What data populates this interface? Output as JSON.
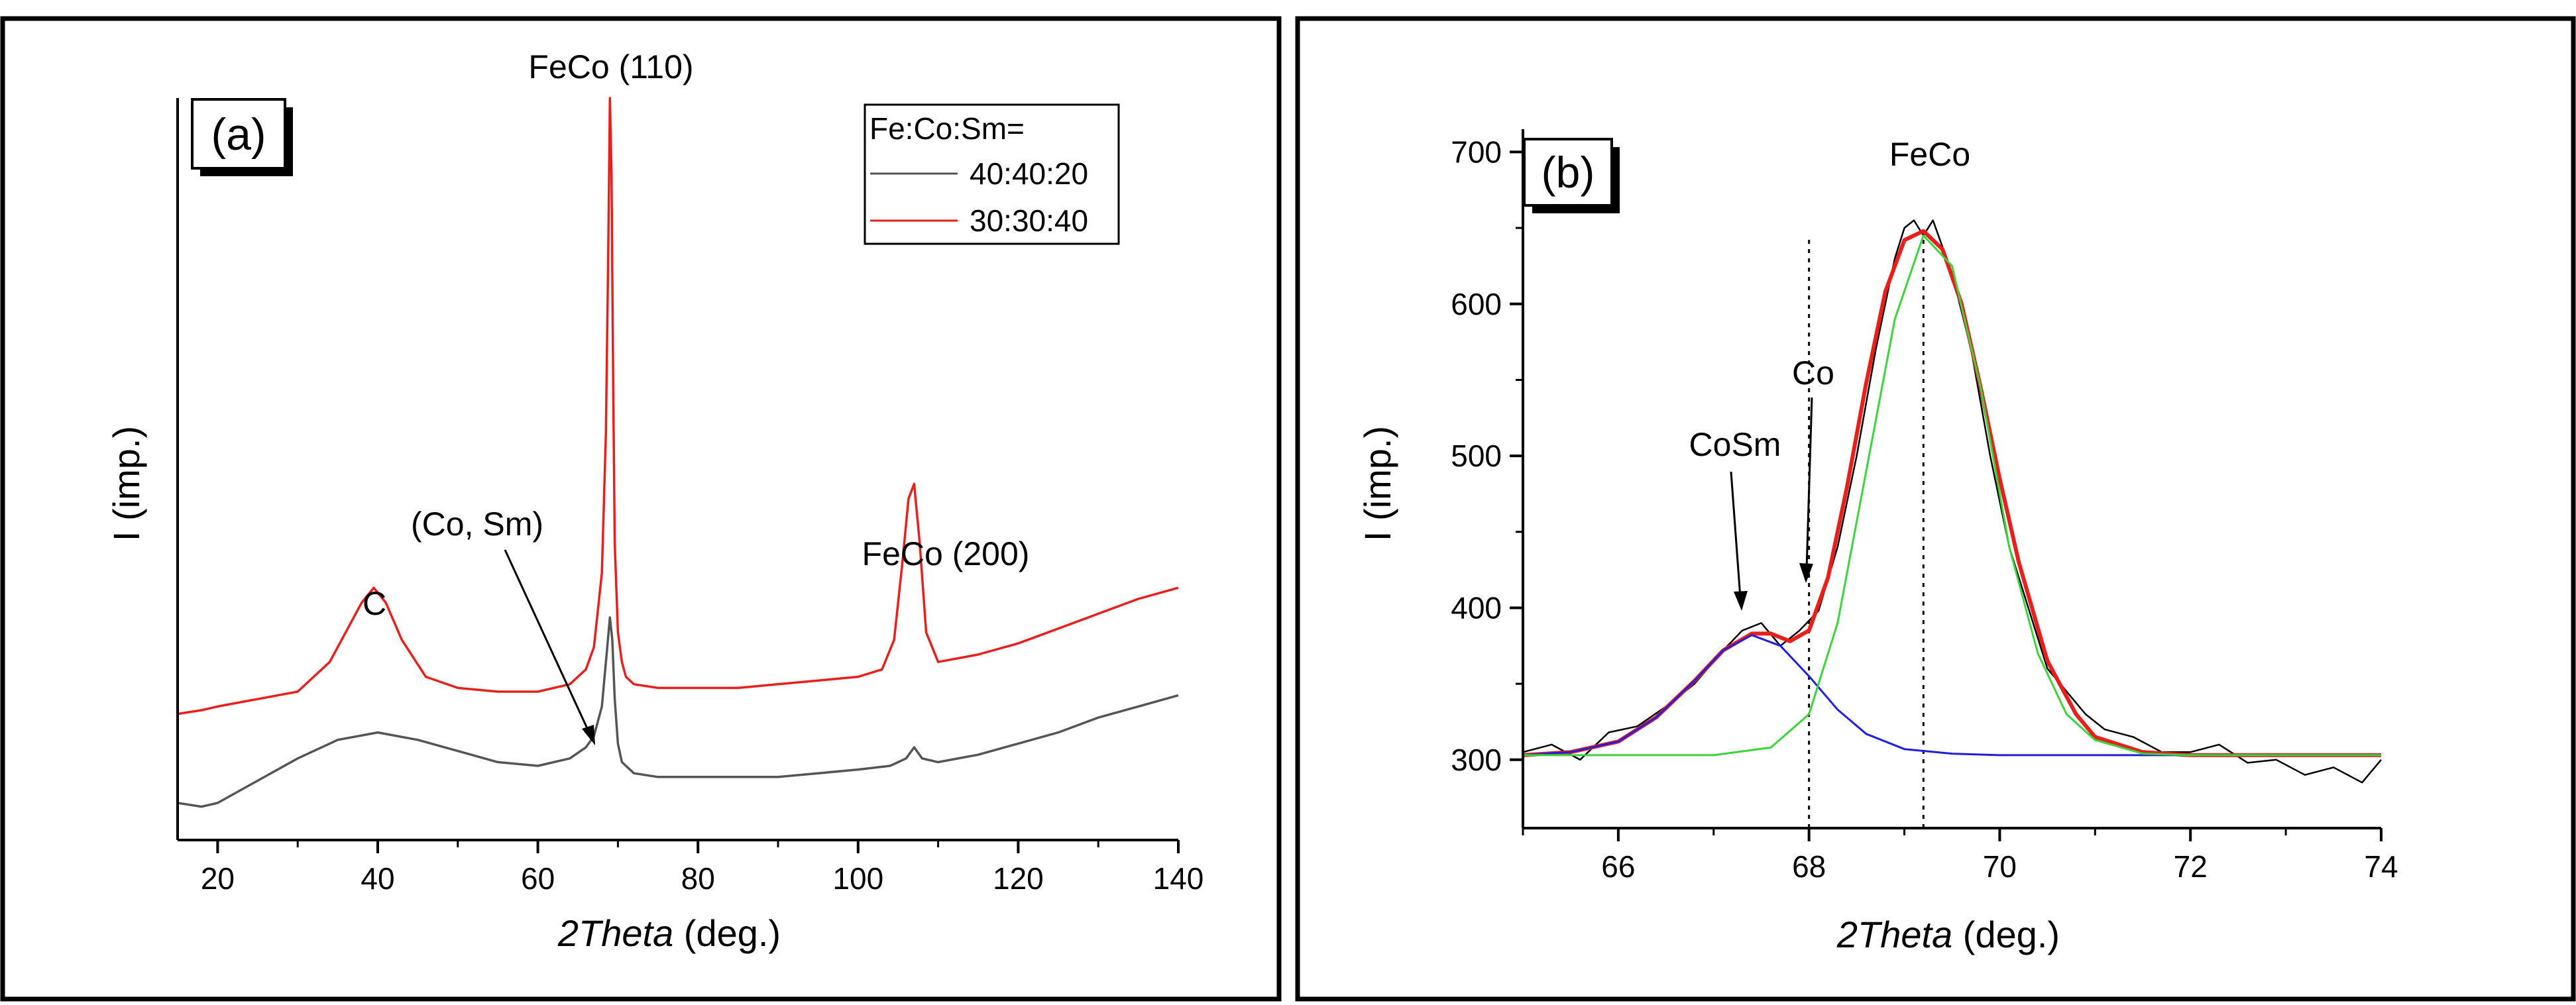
{
  "chart_data": [
    {
      "type": "line",
      "panel_label": "(a)",
      "xlabel_italic": "2Theta",
      "xlabel_rest": " (deg.)",
      "ylabel": "I (imp.)",
      "xlim": [
        15,
        140
      ],
      "ylim": [
        0,
        100
      ],
      "xticks": [
        20,
        40,
        60,
        80,
        100,
        120,
        140
      ],
      "yticks_shown": false,
      "legend": {
        "title": "Fe:Co:Sm=",
        "placement": "top-right",
        "entries": [
          {
            "label": "40:40:20",
            "color": "#555555"
          },
          {
            "label": "30:30:40",
            "color": "#e8201c"
          }
        ]
      },
      "series": [
        {
          "name": "40:40:20",
          "color": "#555555",
          "x": [
            15,
            18,
            20,
            25,
            30,
            35,
            40,
            45,
            50,
            55,
            60,
            64,
            66,
            67,
            68,
            68.5,
            69,
            69.3,
            69.6,
            70,
            70.5,
            72,
            75,
            80,
            85,
            90,
            95,
            100,
            104,
            106,
            107,
            108,
            110,
            115,
            120,
            125,
            130,
            135,
            140
          ],
          "y": [
            5,
            4.5,
            5,
            8,
            11,
            13.5,
            14.5,
            13.5,
            12,
            10.5,
            10,
            11,
            12.5,
            14,
            18,
            24,
            30,
            27,
            19,
            13,
            10.5,
            9,
            8.5,
            8.5,
            8.5,
            8.5,
            9,
            9.5,
            10,
            11,
            12.5,
            11,
            10.5,
            11.5,
            13,
            14.5,
            16.5,
            18,
            19.5
          ]
        },
        {
          "name": "30:30:40",
          "color": "#e8201c",
          "x": [
            15,
            18,
            20,
            25,
            30,
            34,
            36,
            38,
            39.5,
            41,
            43,
            46,
            50,
            55,
            60,
            64,
            66,
            67,
            68,
            68.5,
            68.8,
            69,
            69.2,
            69.4,
            69.6,
            70,
            70.5,
            71,
            72,
            75,
            80,
            85,
            90,
            95,
            100,
            103,
            104.5,
            105.5,
            106.3,
            107,
            107.7,
            108.5,
            110,
            115,
            120,
            125,
            130,
            135,
            140
          ],
          "y": [
            17,
            17.5,
            18,
            19,
            20,
            24,
            28,
            32,
            34,
            32,
            27,
            22,
            20.5,
            20,
            20,
            21,
            23,
            26,
            36,
            55,
            80,
            100,
            90,
            62,
            40,
            28,
            24,
            22,
            21,
            20.5,
            20.5,
            20.5,
            21,
            21.5,
            22,
            23,
            27,
            37,
            46,
            48,
            40,
            28,
            24,
            25,
            26.5,
            28.5,
            30.5,
            32.5,
            34
          ]
        }
      ],
      "annotations": [
        {
          "text": "FeCo (110)",
          "x": 69,
          "y": 100
        },
        {
          "text": "FeCo (200)",
          "x": 107,
          "y": 48
        },
        {
          "text": "C",
          "x": 39.5,
          "y": 34
        },
        {
          "text": "(Co, Sm)",
          "x": 68,
          "y": 26,
          "arrow": true
        }
      ]
    },
    {
      "type": "line",
      "panel_label": "(b)",
      "xlabel_italic": "2Theta",
      "xlabel_rest": " (deg.)",
      "ylabel": "I (imp.)",
      "xlim": [
        65,
        74
      ],
      "ylim": [
        255,
        715
      ],
      "xticks": [
        66,
        68,
        70,
        72,
        74
      ],
      "yticks": [
        300,
        400,
        500,
        600,
        700
      ],
      "series": [
        {
          "role": "measured",
          "color": "#000000",
          "x": [
            65,
            65.3,
            65.6,
            65.9,
            66.2,
            66.5,
            66.8,
            67.1,
            67.3,
            67.5,
            67.7,
            67.9,
            68.1,
            68.3,
            68.5,
            68.7,
            68.9,
            69.0,
            69.1,
            69.2,
            69.3,
            69.5,
            69.7,
            69.9,
            70.1,
            70.3,
            70.5,
            70.7,
            70.9,
            71.1,
            71.4,
            71.7,
            72.0,
            72.3,
            72.6,
            72.9,
            73.2,
            73.5,
            73.8,
            74.0
          ],
          "y": [
            305,
            310,
            300,
            318,
            322,
            335,
            350,
            372,
            385,
            390,
            375,
            385,
            398,
            440,
            500,
            570,
            630,
            650,
            655,
            645,
            655,
            620,
            570,
            500,
            440,
            400,
            360,
            345,
            330,
            320,
            315,
            305,
            305,
            310,
            298,
            300,
            290,
            295,
            285,
            300
          ]
        },
        {
          "role": "fit-total",
          "color": "#e8201c",
          "x": [
            65,
            65.5,
            66,
            66.4,
            66.8,
            67.1,
            67.4,
            67.6,
            67.8,
            68.0,
            68.2,
            68.4,
            68.6,
            68.8,
            69.0,
            69.2,
            69.4,
            69.6,
            69.8,
            70.0,
            70.2,
            70.5,
            70.8,
            71.0,
            71.5,
            72,
            73,
            74
          ],
          "y": [
            303,
            305,
            312,
            328,
            352,
            372,
            383,
            383,
            378,
            385,
            420,
            480,
            548,
            608,
            642,
            648,
            636,
            600,
            545,
            485,
            430,
            365,
            330,
            315,
            305,
            303,
            303,
            303
          ]
        },
        {
          "role": "component-CoSm",
          "color": "#1f1fe0",
          "x": [
            65,
            65.5,
            66,
            66.4,
            66.8,
            67.1,
            67.4,
            67.7,
            68.0,
            68.3,
            68.6,
            69.0,
            69.5,
            70,
            71,
            72,
            73,
            74
          ],
          "y": [
            303,
            305,
            312,
            328,
            352,
            372,
            382,
            375,
            355,
            333,
            317,
            307,
            304,
            303,
            303,
            303,
            303,
            303
          ]
        },
        {
          "role": "component-FeCo",
          "color": "#3bd43b",
          "x": [
            65,
            66,
            67,
            67.6,
            68.0,
            68.3,
            68.6,
            68.9,
            69.2,
            69.5,
            69.8,
            70.1,
            70.4,
            70.7,
            71.0,
            71.5,
            72,
            73,
            74
          ],
          "y": [
            303,
            303,
            303,
            308,
            330,
            390,
            490,
            590,
            645,
            625,
            545,
            440,
            370,
            330,
            313,
            304,
            303,
            303,
            303
          ]
        }
      ],
      "reference_lines": [
        68.0,
        69.2
      ],
      "annotations": [
        {
          "text": "FeCo",
          "x": 69.2,
          "y": 660
        },
        {
          "text": "Co",
          "x": 68.0,
          "y": 395,
          "arrow": true
        },
        {
          "text": "CoSm",
          "x": 67.4,
          "y": 383,
          "arrow": true
        }
      ]
    }
  ]
}
